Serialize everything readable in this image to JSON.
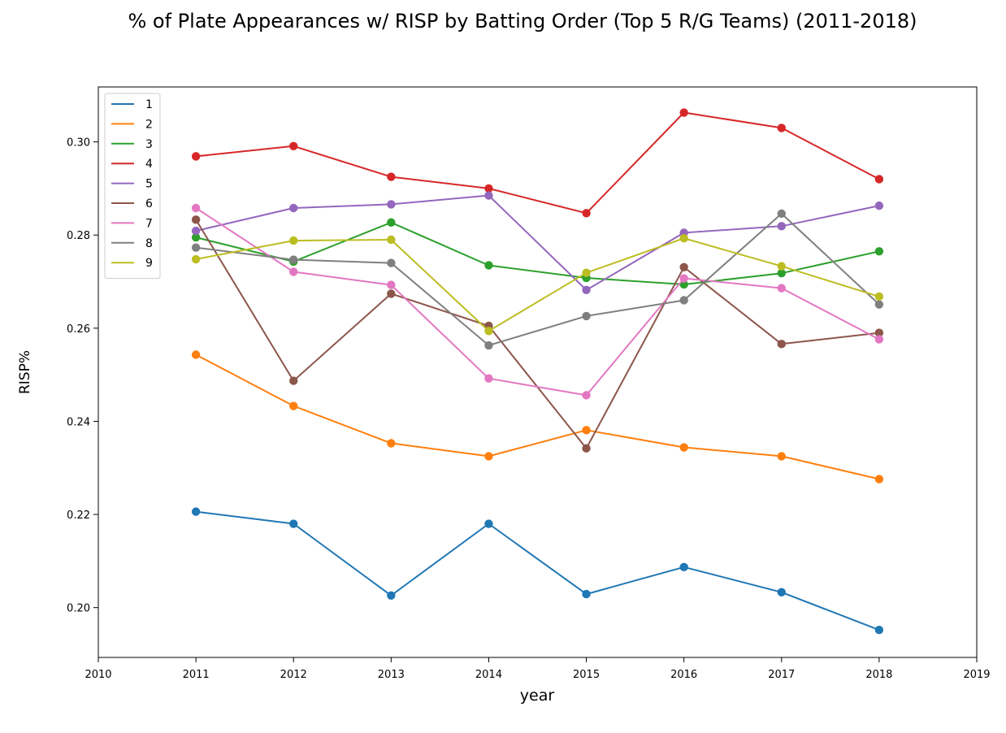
{
  "chart_data": {
    "type": "line",
    "title": "% of Plate Appearances w/ RISP by Batting Order (Top 5 R/G Teams) (2011-2018)",
    "xlabel": "year",
    "ylabel": "RISP%",
    "xlim": [
      2010,
      2019
    ],
    "ylim": [
      0.1893,
      0.3118
    ],
    "xticks": [
      2010,
      2011,
      2012,
      2013,
      2014,
      2015,
      2016,
      2017,
      2018,
      2019
    ],
    "yticks": [
      0.2,
      0.22,
      0.24,
      0.26,
      0.28,
      0.3
    ],
    "ytick_labels": [
      "0.20",
      "0.22",
      "0.24",
      "0.26",
      "0.28",
      "0.30"
    ],
    "legend_position": "upper-left",
    "grid": false,
    "markers": true,
    "x": [
      2011,
      2012,
      2013,
      2014,
      2015,
      2016,
      2017,
      2018
    ],
    "series": [
      {
        "name": "1",
        "color": "#1f77b4",
        "values": [
          0.2206,
          0.218,
          0.2026,
          0.218,
          0.2029,
          0.2087,
          0.2033,
          0.1952
        ]
      },
      {
        "name": "2",
        "color": "#ff7f0e",
        "values": [
          0.2543,
          0.2433,
          0.2353,
          0.2325,
          0.2381,
          0.2344,
          0.2325,
          0.2276
        ]
      },
      {
        "name": "3",
        "color": "#2ca02c",
        "values": [
          0.2795,
          0.2743,
          0.2827,
          0.2735,
          0.2708,
          0.2694,
          0.2718,
          0.2765
        ]
      },
      {
        "name": "4",
        "color": "#d62728",
        "values": [
          0.2969,
          0.2991,
          0.2925,
          0.29,
          0.2847,
          0.3063,
          0.303,
          0.292
        ]
      },
      {
        "name": "5",
        "color": "#9467bd",
        "values": [
          0.2809,
          0.2858,
          0.2866,
          0.2885,
          0.2682,
          0.2805,
          0.2819,
          0.2863
        ]
      },
      {
        "name": "6",
        "color": "#8c564b",
        "values": [
          0.2833,
          0.2487,
          0.2674,
          0.2605,
          0.2342,
          0.2731,
          0.2566,
          0.259
        ]
      },
      {
        "name": "7",
        "color": "#e377c2",
        "values": [
          0.2858,
          0.2721,
          0.2693,
          0.2492,
          0.2456,
          0.2707,
          0.2686,
          0.2576
        ]
      },
      {
        "name": "8",
        "color": "#7f7f7f",
        "values": [
          0.2773,
          0.2747,
          0.274,
          0.2563,
          0.2626,
          0.266,
          0.2846,
          0.2651
        ]
      },
      {
        "name": "9",
        "color": "#bcbd22",
        "values": [
          0.2748,
          0.2788,
          0.279,
          0.2594,
          0.2719,
          0.2793,
          0.2733,
          0.2668
        ]
      }
    ]
  }
}
